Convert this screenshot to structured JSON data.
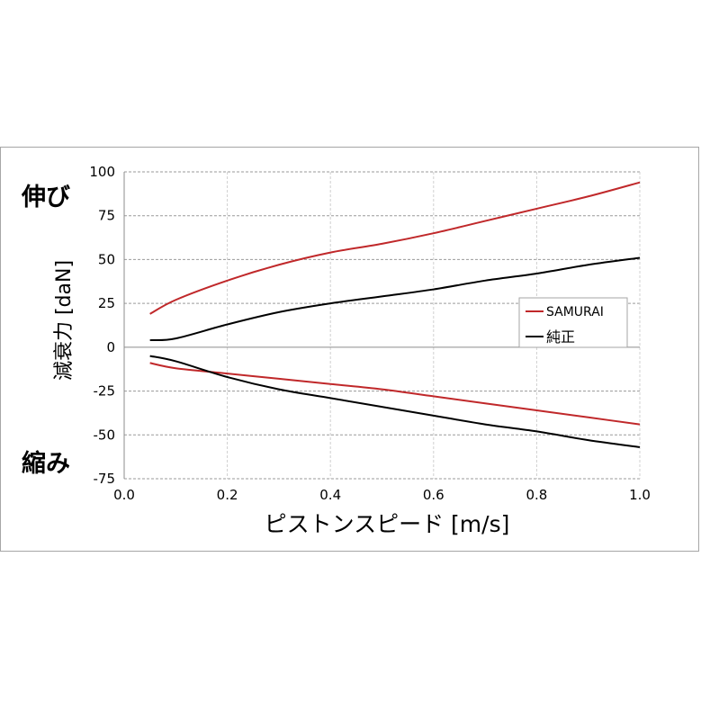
{
  "chart_data": {
    "type": "line",
    "title": "",
    "xlabel": "ピストンスピード [m/s]",
    "ylabel": "減衰力 [daN]",
    "side_labels": {
      "top": "伸び",
      "bottom": "縮み"
    },
    "xlim": [
      0.0,
      1.0
    ],
    "ylim": [
      -75,
      100
    ],
    "x_ticks": [
      "0.0",
      "0.2",
      "0.4",
      "0.6",
      "0.8",
      "1.0"
    ],
    "y_ticks": [
      "100",
      "75",
      "50",
      "25",
      "0",
      "-25",
      "-50",
      "-75"
    ],
    "grid": true,
    "legend_position": "right-middle",
    "legend": [
      {
        "label": "SAMURAI",
        "color": "#c0282a"
      },
      {
        "label": "純正",
        "color": "#000000"
      }
    ],
    "x": [
      0.05,
      0.1,
      0.2,
      0.3,
      0.4,
      0.5,
      0.6,
      0.7,
      0.8,
      0.9,
      1.0
    ],
    "series": [
      {
        "name": "SAMURAI (伸び)",
        "legend": "SAMURAI",
        "color": "#c0282a",
        "values": [
          19,
          27,
          38,
          47,
          54,
          59,
          65,
          72,
          79,
          86,
          94
        ]
      },
      {
        "name": "純正 (伸び)",
        "legend": "純正",
        "color": "#000000",
        "values": [
          4,
          5,
          13,
          20,
          25,
          29,
          33,
          38,
          42,
          47,
          51
        ]
      },
      {
        "name": "SAMURAI (縮み)",
        "legend": "SAMURAI",
        "color": "#c0282a",
        "values": [
          -9,
          -12,
          -15,
          -18,
          -21,
          -24,
          -28,
          -32,
          -36,
          -40,
          -44
        ]
      },
      {
        "name": "純正 (縮み)",
        "legend": "純正",
        "color": "#000000",
        "values": [
          -5,
          -8,
          -17,
          -24,
          -29,
          -34,
          -39,
          -44,
          -48,
          -53,
          -57
        ]
      }
    ]
  }
}
